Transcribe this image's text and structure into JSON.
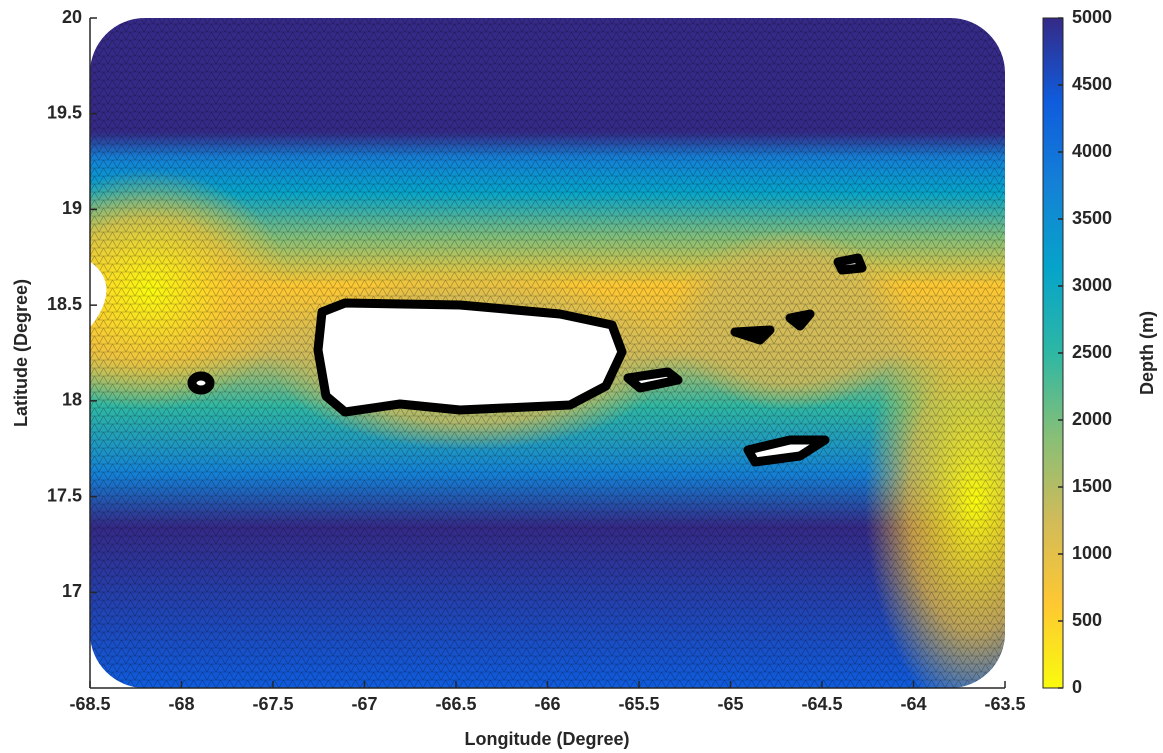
{
  "chart_data": {
    "type": "map",
    "xlabel": "Longitude (Degree)",
    "ylabel": "Latitude (Degree)",
    "xlim": [
      -68.5,
      -63.5
    ],
    "xticks": [
      -68.5,
      -68,
      -67.5,
      -67,
      -66.5,
      -66,
      -65.5,
      -65,
      -64.5,
      -64,
      -63.5
    ],
    "ylim": [
      16.5,
      20
    ],
    "yticks": [
      17,
      17.5,
      18,
      18.5,
      19,
      19.5,
      20
    ],
    "colorbar": {
      "label": "Depth (m)",
      "lim": [
        0,
        5000
      ],
      "ticks": [
        0,
        500,
        1000,
        1500,
        2000,
        2500,
        3000,
        3500,
        4000,
        4500,
        5000
      ],
      "colormap": [
        "#f9fb0e",
        "#fec832",
        "#d1bb59",
        "#87bf77",
        "#2eb7a4",
        "#06a4ca",
        "#1481d6",
        "#0f5cdd",
        "#352a87"
      ]
    }
  }
}
